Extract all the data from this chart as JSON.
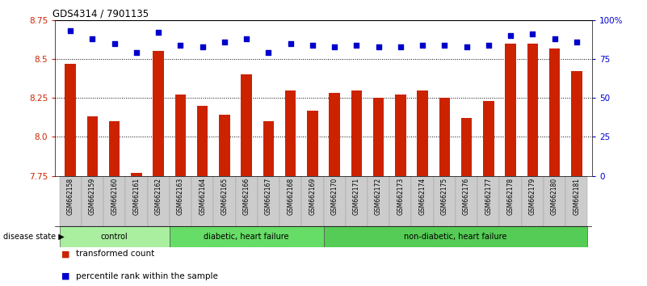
{
  "title": "GDS4314 / 7901135",
  "samples": [
    "GSM662158",
    "GSM662159",
    "GSM662160",
    "GSM662161",
    "GSM662162",
    "GSM662163",
    "GSM662164",
    "GSM662165",
    "GSM662166",
    "GSM662167",
    "GSM662168",
    "GSM662169",
    "GSM662170",
    "GSM662171",
    "GSM662172",
    "GSM662173",
    "GSM662174",
    "GSM662175",
    "GSM662176",
    "GSM662177",
    "GSM662178",
    "GSM662179",
    "GSM662180",
    "GSM662181"
  ],
  "bar_values": [
    8.47,
    8.13,
    8.1,
    7.77,
    8.55,
    8.27,
    8.2,
    8.14,
    8.4,
    8.1,
    8.3,
    8.17,
    8.28,
    8.3,
    8.25,
    8.27,
    8.3,
    8.25,
    8.12,
    8.23,
    8.6,
    8.6,
    8.57,
    8.42
  ],
  "dot_values": [
    93,
    88,
    85,
    79,
    92,
    84,
    83,
    86,
    88,
    79,
    85,
    84,
    83,
    84,
    83,
    83,
    84,
    84,
    83,
    84,
    90,
    91,
    88,
    86
  ],
  "bar_color": "#cc2200",
  "dot_color": "#0000cc",
  "ylim_left": [
    7.75,
    8.75
  ],
  "ylim_right": [
    0,
    100
  ],
  "yticks_left": [
    7.75,
    8.0,
    8.25,
    8.5,
    8.75
  ],
  "yticks_right": [
    0,
    25,
    50,
    75,
    100
  ],
  "ytick_labels_right": [
    "0",
    "25",
    "50",
    "75",
    "100%"
  ],
  "grid_lines": [
    8.0,
    8.25,
    8.5
  ],
  "groups": [
    {
      "label": "control",
      "start": 0,
      "end": 5,
      "color": "#aaeea0"
    },
    {
      "label": "diabetic, heart failure",
      "start": 5,
      "end": 12,
      "color": "#66dd66"
    },
    {
      "label": "non-diabetic, heart failure",
      "start": 12,
      "end": 24,
      "color": "#55cc55"
    }
  ],
  "legend_bar_label": "transformed count",
  "legend_dot_label": "percentile rank within the sample",
  "disease_state_label": "disease state",
  "bar_width": 0.5,
  "bg_color": "#ffffff",
  "ax_bg_color": "#ffffff"
}
